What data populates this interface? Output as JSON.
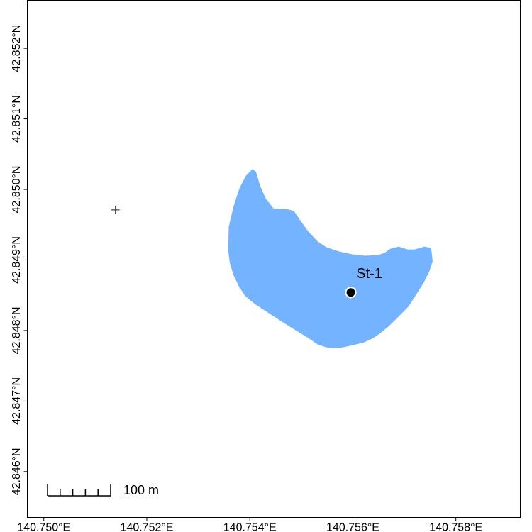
{
  "map": {
    "xlim": [
      140.74968,
      140.75925
    ],
    "ylim": [
      42.84535,
      42.85268
    ],
    "xticks": [
      {
        "value": 140.75,
        "label": "140.750°E"
      },
      {
        "value": 140.752,
        "label": "140.752°E"
      },
      {
        "value": 140.754,
        "label": "140.754°E"
      },
      {
        "value": 140.756,
        "label": "140.756°E"
      },
      {
        "value": 140.758,
        "label": "140.758°E"
      }
    ],
    "yticks": [
      {
        "value": 42.846,
        "label": "42.846°N"
      },
      {
        "value": 42.847,
        "label": "42.847°N"
      },
      {
        "value": 42.848,
        "label": "42.848°N"
      },
      {
        "value": 42.849,
        "label": "42.849°N"
      },
      {
        "value": 42.85,
        "label": "42.850°N"
      },
      {
        "value": 42.851,
        "label": "42.851°N"
      },
      {
        "value": 42.852,
        "label": "42.852°N"
      }
    ],
    "lake": {
      "color": "#74b3ff",
      "lon": [
        140.75358,
        140.75359,
        140.75368,
        140.7538,
        140.75392,
        140.75405,
        140.75412,
        140.7542,
        140.75431,
        140.75446,
        140.75474,
        140.75486,
        140.75497,
        140.75514,
        140.75532,
        140.75549,
        140.75574,
        140.75599,
        140.75624,
        140.75649,
        140.75661,
        140.75673,
        140.75689,
        140.75706,
        140.7572,
        140.75739,
        140.75752,
        140.75755,
        140.75748,
        140.75737,
        140.75722,
        140.75708,
        140.75689,
        140.75671,
        140.75653,
        140.75639,
        140.75621,
        140.75599,
        140.75574,
        140.75549,
        140.75532,
        140.75512,
        140.75483,
        140.75457,
        140.75434,
        140.75409,
        140.75391,
        140.75379,
        140.75368,
        140.75361
      ],
      "lat": [
        42.84914,
        42.84947,
        42.84975,
        42.85002,
        42.85019,
        42.85029,
        42.85025,
        42.85005,
        42.84987,
        42.84973,
        42.84972,
        42.84969,
        42.84957,
        42.8494,
        42.84926,
        42.84918,
        42.84912,
        42.84908,
        42.84906,
        42.84907,
        42.8491,
        42.84916,
        42.84919,
        42.84915,
        42.84915,
        42.84919,
        42.84917,
        42.84898,
        42.84883,
        42.84867,
        42.8485,
        42.84834,
        42.8482,
        42.84807,
        42.84796,
        42.84789,
        42.84783,
        42.84779,
        42.84775,
        42.84776,
        42.8478,
        42.8479,
        42.84803,
        42.84815,
        42.84826,
        42.84838,
        42.84849,
        42.84862,
        42.84879,
        42.84896
      ]
    },
    "stations": [
      {
        "label": "St-1",
        "lon": 140.75596,
        "lat": 42.84854
      }
    ],
    "marker": {
      "lon": 140.75139,
      "lat": 42.84971
    },
    "scale_bar": {
      "length": 100,
      "divisions": 5,
      "label": "100 m"
    }
  }
}
